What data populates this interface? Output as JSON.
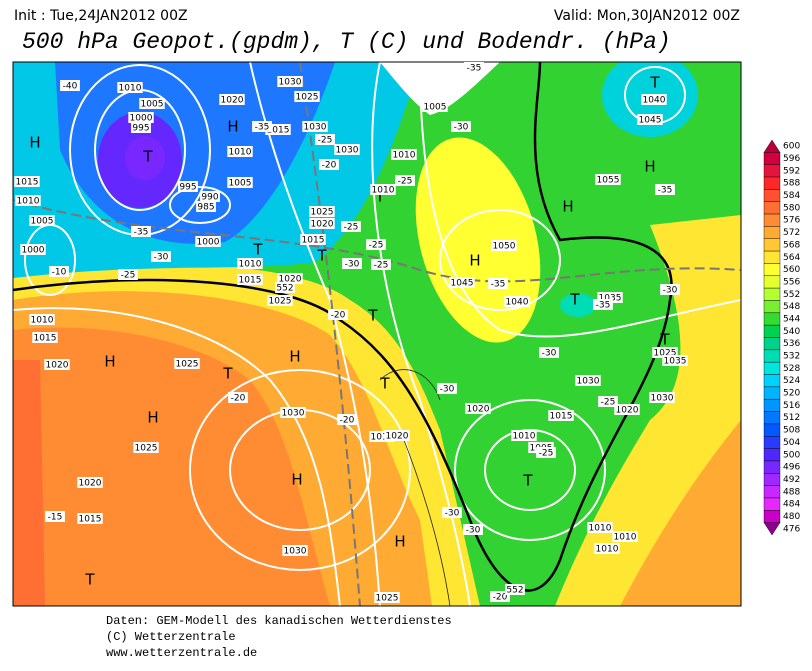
{
  "header": {
    "init": "Init : Tue,24JAN2012 00Z",
    "valid": "Valid: Mon,30JAN2012 00Z",
    "title": "500 hPa Geopot.(gpdm), T (C) und Bodendr. (hPa)"
  },
  "colorbar": {
    "ticks": [
      600,
      596,
      592,
      588,
      584,
      580,
      576,
      572,
      568,
      564,
      560,
      556,
      552,
      548,
      544,
      540,
      536,
      532,
      528,
      524,
      520,
      516,
      512,
      508,
      504,
      500,
      496,
      492,
      488,
      484,
      480,
      476
    ],
    "colors": [
      "#b4003c",
      "#d2003c",
      "#e6143c",
      "#ff2828",
      "#ff5032",
      "#ff6e32",
      "#ff8c32",
      "#ffaa32",
      "#ffc832",
      "#ffe632",
      "#ffff32",
      "#e6ff32",
      "#b4ff32",
      "#78f032",
      "#32dc32",
      "#00d250",
      "#00d28c",
      "#00dcb4",
      "#00e6dc",
      "#00d2ff",
      "#00b4ff",
      "#0096ff",
      "#0078ff",
      "#005aff",
      "#283cff",
      "#5028ff",
      "#7828ff",
      "#a028ff",
      "#c828ff",
      "#e628ff",
      "#c800c8",
      "#8c008c"
    ]
  },
  "map_labels": [
    "H",
    "H",
    "H",
    "H",
    "H",
    "H",
    "H",
    "H",
    "H",
    "H",
    "T",
    "T",
    "T",
    "T",
    "T",
    "T",
    "T",
    "T",
    "T",
    "T",
    "T",
    "T",
    "1010",
    "1005",
    "1000",
    "995",
    "995",
    "990",
    "985",
    "1000",
    "1015",
    "1010",
    "1005",
    "1000",
    "1020",
    "1030",
    "1025",
    "1015",
    "1010",
    "1005",
    "1030",
    "1030",
    "1025",
    "1020",
    "1015",
    "1010",
    "1015",
    "1020",
    "1025",
    "1010",
    "1015",
    "1020",
    "1025",
    "1030",
    "1025",
    "1020",
    "1015",
    "1030",
    "1015",
    "1020",
    "1020",
    "1015",
    "1010",
    "1005",
    "1010",
    "1010",
    "1010",
    "1025",
    "1035",
    "1030",
    "1030",
    "1020",
    "1035",
    "1040",
    "1045",
    "1050",
    "1055",
    "1040",
    "1045",
    "1005",
    "1010",
    "1010",
    "1025",
    "-40",
    "-35",
    "-30",
    "-25",
    "-10",
    "-35",
    "-25",
    "-20",
    "-25",
    "-30",
    "-25",
    "-25",
    "-25",
    "-30",
    "-35",
    "-35",
    "-35",
    "-30",
    "-30",
    "-35",
    "-20",
    "-20",
    "-20",
    "-30",
    "-25",
    "-30",
    "-30",
    "-25",
    "-15",
    "-20",
    "552",
    "552"
  ],
  "footer": [
    "Daten: GEM-Modell des kanadischen Wetterdienstes",
    "(C) Wetterzentrale",
    "www.wetterzentrale.de"
  ]
}
